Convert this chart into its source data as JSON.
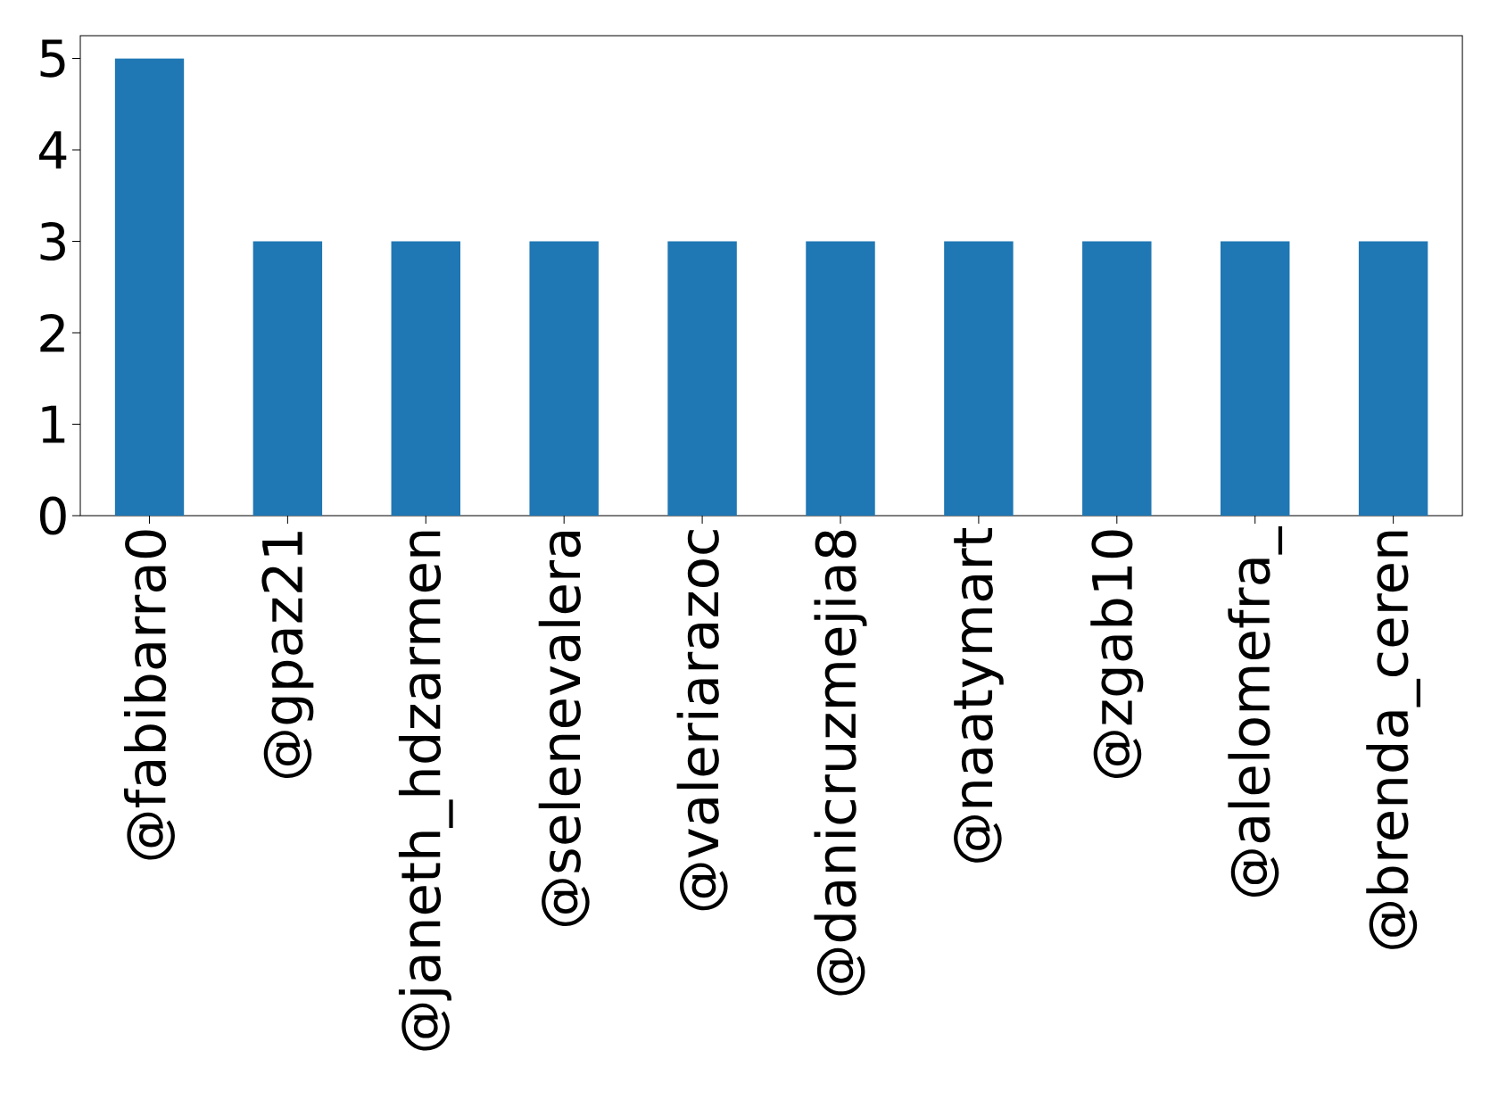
{
  "chart_data": {
    "type": "bar",
    "categories": [
      "@fabibarra0",
      "@gpaz21",
      "@janeth_hdzarmen",
      "@selenevalera",
      "@valeriarazoc",
      "@danicruzmejia8",
      "@naatymart",
      "@zgab10",
      "@alelomefra_",
      "@brenda_ceren"
    ],
    "values": [
      5,
      3,
      3,
      3,
      3,
      3,
      3,
      3,
      3,
      3
    ],
    "color": "#1f77b4",
    "ylim": [
      0,
      5.25
    ],
    "yticks": [
      0,
      1,
      2,
      3,
      4,
      5
    ]
  }
}
